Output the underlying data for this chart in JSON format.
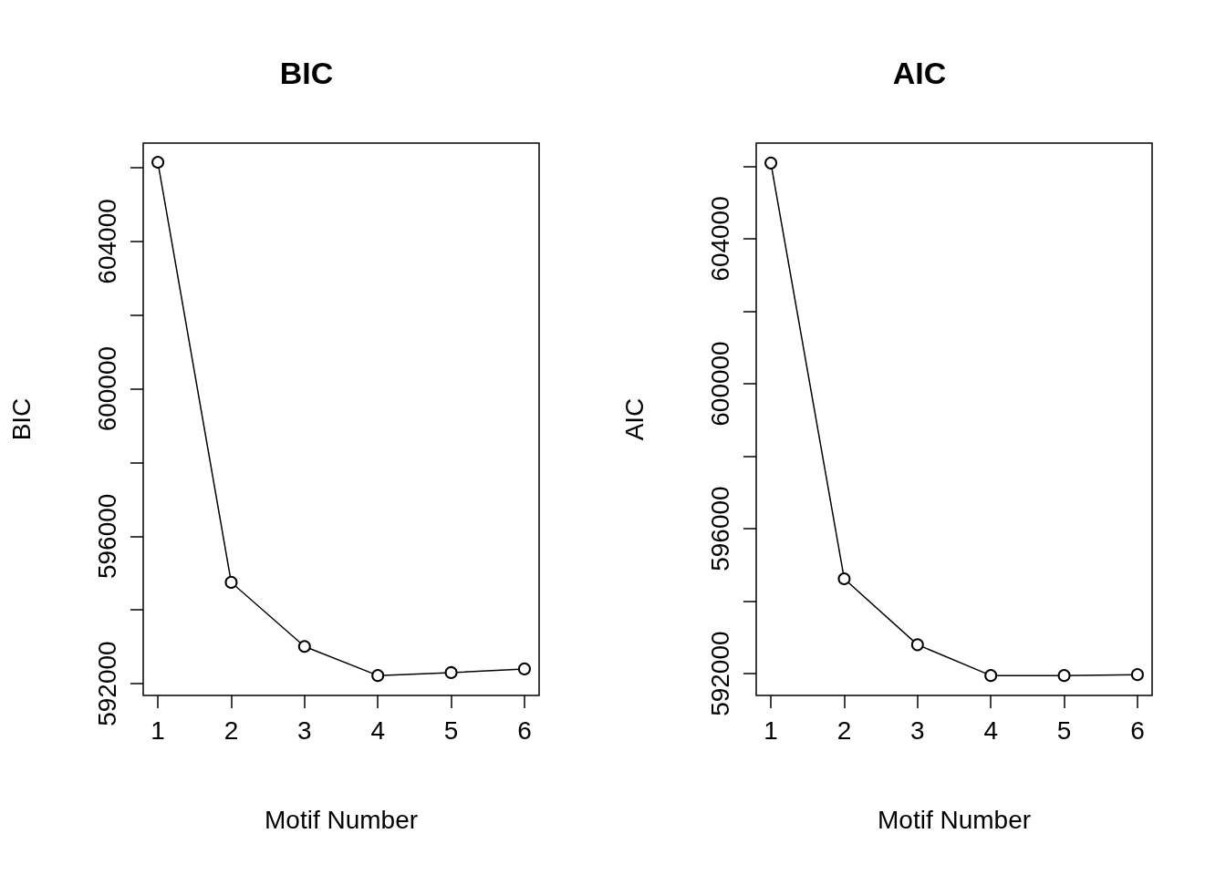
{
  "chart_data": [
    {
      "type": "line",
      "title": "BIC",
      "xlabel": "Motif Number",
      "ylabel": "BIC",
      "x": [
        1,
        2,
        3,
        4,
        5,
        6
      ],
      "series": [
        {
          "color": "#000000",
          "values": [
            606150,
            594750,
            593010,
            592220,
            592300,
            592400
          ]
        }
      ],
      "marker": "circle",
      "xlim": [
        0.8,
        6.2
      ],
      "xticks": [
        1,
        2,
        3,
        4,
        5,
        6
      ],
      "ylim": [
        591680,
        606670
      ],
      "yticks": [
        592000,
        {
          "value": 594000,
          "label": null
        },
        596000,
        {
          "value": 598000,
          "label": null
        },
        600000,
        {
          "value": 602000,
          "label": null
        },
        604000,
        {
          "value": 606000,
          "label": null
        }
      ]
    },
    {
      "type": "line",
      "title": "AIC",
      "xlabel": "Motif Number",
      "ylabel": "AIC",
      "x": [
        1,
        2,
        3,
        4,
        5,
        6
      ],
      "series": [
        {
          "color": "#000000",
          "values": [
            606090,
            594620,
            592800,
            591950,
            591950,
            591975
          ]
        }
      ],
      "marker": "circle",
      "xlim": [
        0.8,
        6.2
      ],
      "xticks": [
        1,
        2,
        3,
        4,
        5,
        6
      ],
      "ylim": [
        591400,
        606640
      ],
      "yticks": [
        592000,
        {
          "value": 594000,
          "label": null
        },
        596000,
        {
          "value": 598000,
          "label": null
        },
        600000,
        {
          "value": 602000,
          "label": null
        },
        604000,
        {
          "value": 606000,
          "label": null
        }
      ]
    }
  ]
}
